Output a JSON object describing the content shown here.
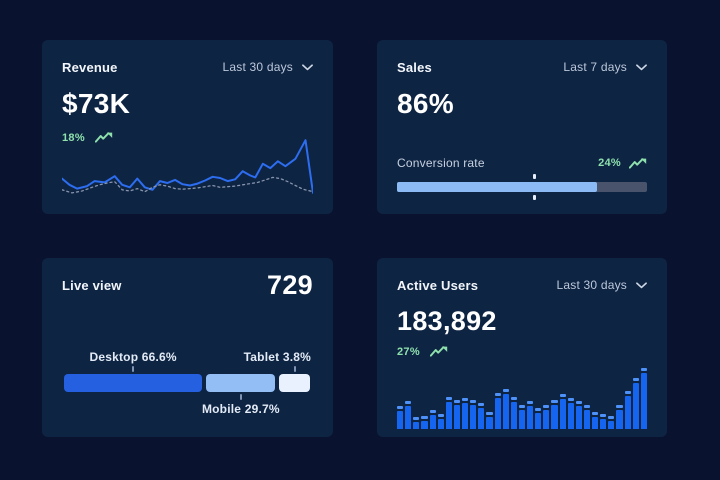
{
  "colors": {
    "page_bg": "#091330",
    "card_bg": "#0e2443",
    "line_blue": "#2d6df0",
    "dotted_gray": "#8794ad",
    "bar_blue": "#1565f0",
    "bar_cap_blue": "#4e92f9",
    "progress_fill_blue": "#8cbaf4",
    "progress_track_gray": "#49536b",
    "green": "#8ee0ad"
  },
  "cards": {
    "revenue": {
      "title": "Revenue",
      "range_label": "Last 30 days",
      "value": "$73K",
      "delta": "18%"
    },
    "sales": {
      "title": "Sales",
      "range_label": "Last 7 days",
      "value": "86%",
      "metric_label": "Conversion rate",
      "delta": "24%"
    },
    "live_view": {
      "title": "Live view",
      "value": "729",
      "segments": [
        {
          "name": "desktop",
          "label": "Desktop 66.6%",
          "value_pct": 66.6,
          "display_width_pct": 56,
          "color": "#2460e0",
          "label_side": "top",
          "label_align": "center"
        },
        {
          "name": "mobile",
          "label": "Mobile 29.7%",
          "value_pct": 29.7,
          "display_width_pct": 28,
          "color": "#93bdf5",
          "label_side": "bottom",
          "label_align": "center"
        },
        {
          "name": "tablet",
          "label": "Tablet 3.8%",
          "value_pct": 3.8,
          "display_width_pct": 12.4,
          "color": "#e8f1fd",
          "label_side": "top",
          "label_align": "right"
        }
      ]
    },
    "active_users": {
      "title": "Active Users",
      "range_label": "Last 30 days",
      "value": "183,892",
      "delta": "27%"
    }
  },
  "chart_data": [
    {
      "id": "revenue-trend",
      "type": "line",
      "title": "Revenue",
      "range": "Last 30 days",
      "kpi_value": "$73K",
      "kpi_change_pct": 18,
      "xlabel": "",
      "ylabel": "",
      "note": "axes unlabeled; point values normalized 0-100 of plot height",
      "legend_position": "none",
      "grid": false,
      "series": [
        {
          "name": "current period",
          "style": "solid",
          "color": "#2d6df0",
          "points": [
            [
              0,
              28
            ],
            [
              3,
              18
            ],
            [
              6,
              12
            ],
            [
              10,
              16
            ],
            [
              13,
              24
            ],
            [
              17,
              22
            ],
            [
              21,
              32
            ],
            [
              24,
              18
            ],
            [
              27,
              14
            ],
            [
              30,
              28
            ],
            [
              33,
              14
            ],
            [
              36,
              10
            ],
            [
              39,
              24
            ],
            [
              42,
              21
            ],
            [
              45,
              26
            ],
            [
              48,
              19
            ],
            [
              51,
              17
            ],
            [
              54,
              20
            ],
            [
              57,
              25
            ],
            [
              60,
              31
            ],
            [
              63,
              29
            ],
            [
              66,
              24
            ],
            [
              69,
              27
            ],
            [
              72,
              40
            ],
            [
              75,
              33
            ],
            [
              77,
              30
            ],
            [
              80,
              52
            ],
            [
              83,
              45
            ],
            [
              86,
              56
            ],
            [
              89,
              48
            ],
            [
              93,
              60
            ],
            [
              97,
              90
            ],
            [
              100,
              5
            ]
          ]
        },
        {
          "name": "previous period",
          "style": "dotted",
          "color": "#8794ad",
          "points": [
            [
              0,
              10
            ],
            [
              4,
              5
            ],
            [
              8,
              8
            ],
            [
              12,
              14
            ],
            [
              15,
              18
            ],
            [
              18,
              21
            ],
            [
              21,
              23
            ],
            [
              24,
              10
            ],
            [
              27,
              8
            ],
            [
              30,
              12
            ],
            [
              33,
              7
            ],
            [
              36,
              14
            ],
            [
              39,
              18
            ],
            [
              42,
              16
            ],
            [
              45,
              12
            ],
            [
              48,
              11
            ],
            [
              51,
              12
            ],
            [
              54,
              13
            ],
            [
              57,
              15
            ],
            [
              60,
              17
            ],
            [
              63,
              14
            ],
            [
              66,
              15
            ],
            [
              69,
              16
            ],
            [
              72,
              18
            ],
            [
              75,
              20
            ],
            [
              78,
              22
            ],
            [
              81,
              26
            ],
            [
              84,
              30
            ],
            [
              87,
              28
            ],
            [
              90,
              23
            ],
            [
              93,
              17
            ],
            [
              96,
              11
            ],
            [
              100,
              7
            ]
          ]
        }
      ]
    },
    {
      "id": "sales-conversion",
      "type": "bar",
      "subtype": "progress",
      "title": "Sales",
      "range": "Last 7 days",
      "kpi_value": "86%",
      "metric": "Conversion rate",
      "metric_change_pct": 24,
      "progress_fill_pct": 80,
      "target_marker_pct": 55
    },
    {
      "id": "live-view-devices",
      "type": "bar",
      "subtype": "stacked-horizontal",
      "title": "Live view",
      "kpi_value": 729,
      "categories": [
        "Desktop",
        "Mobile",
        "Tablet"
      ],
      "values": [
        66.6,
        29.7,
        3.8
      ],
      "unit": "%"
    },
    {
      "id": "active-users",
      "type": "bar",
      "title": "Active Users",
      "range": "Last 30 days",
      "kpi_value": "183,892",
      "kpi_change_pct": 27,
      "note": "axes unlabeled; 31 bars, heights normalized 0-100 of plot height",
      "values": [
        36,
        44,
        18,
        21,
        30,
        23,
        50,
        46,
        48,
        45,
        40,
        26,
        56,
        62,
        50,
        38,
        43,
        33,
        37,
        45,
        54,
        48,
        44,
        38,
        27,
        23,
        21,
        37,
        60,
        80,
        96
      ]
    }
  ]
}
